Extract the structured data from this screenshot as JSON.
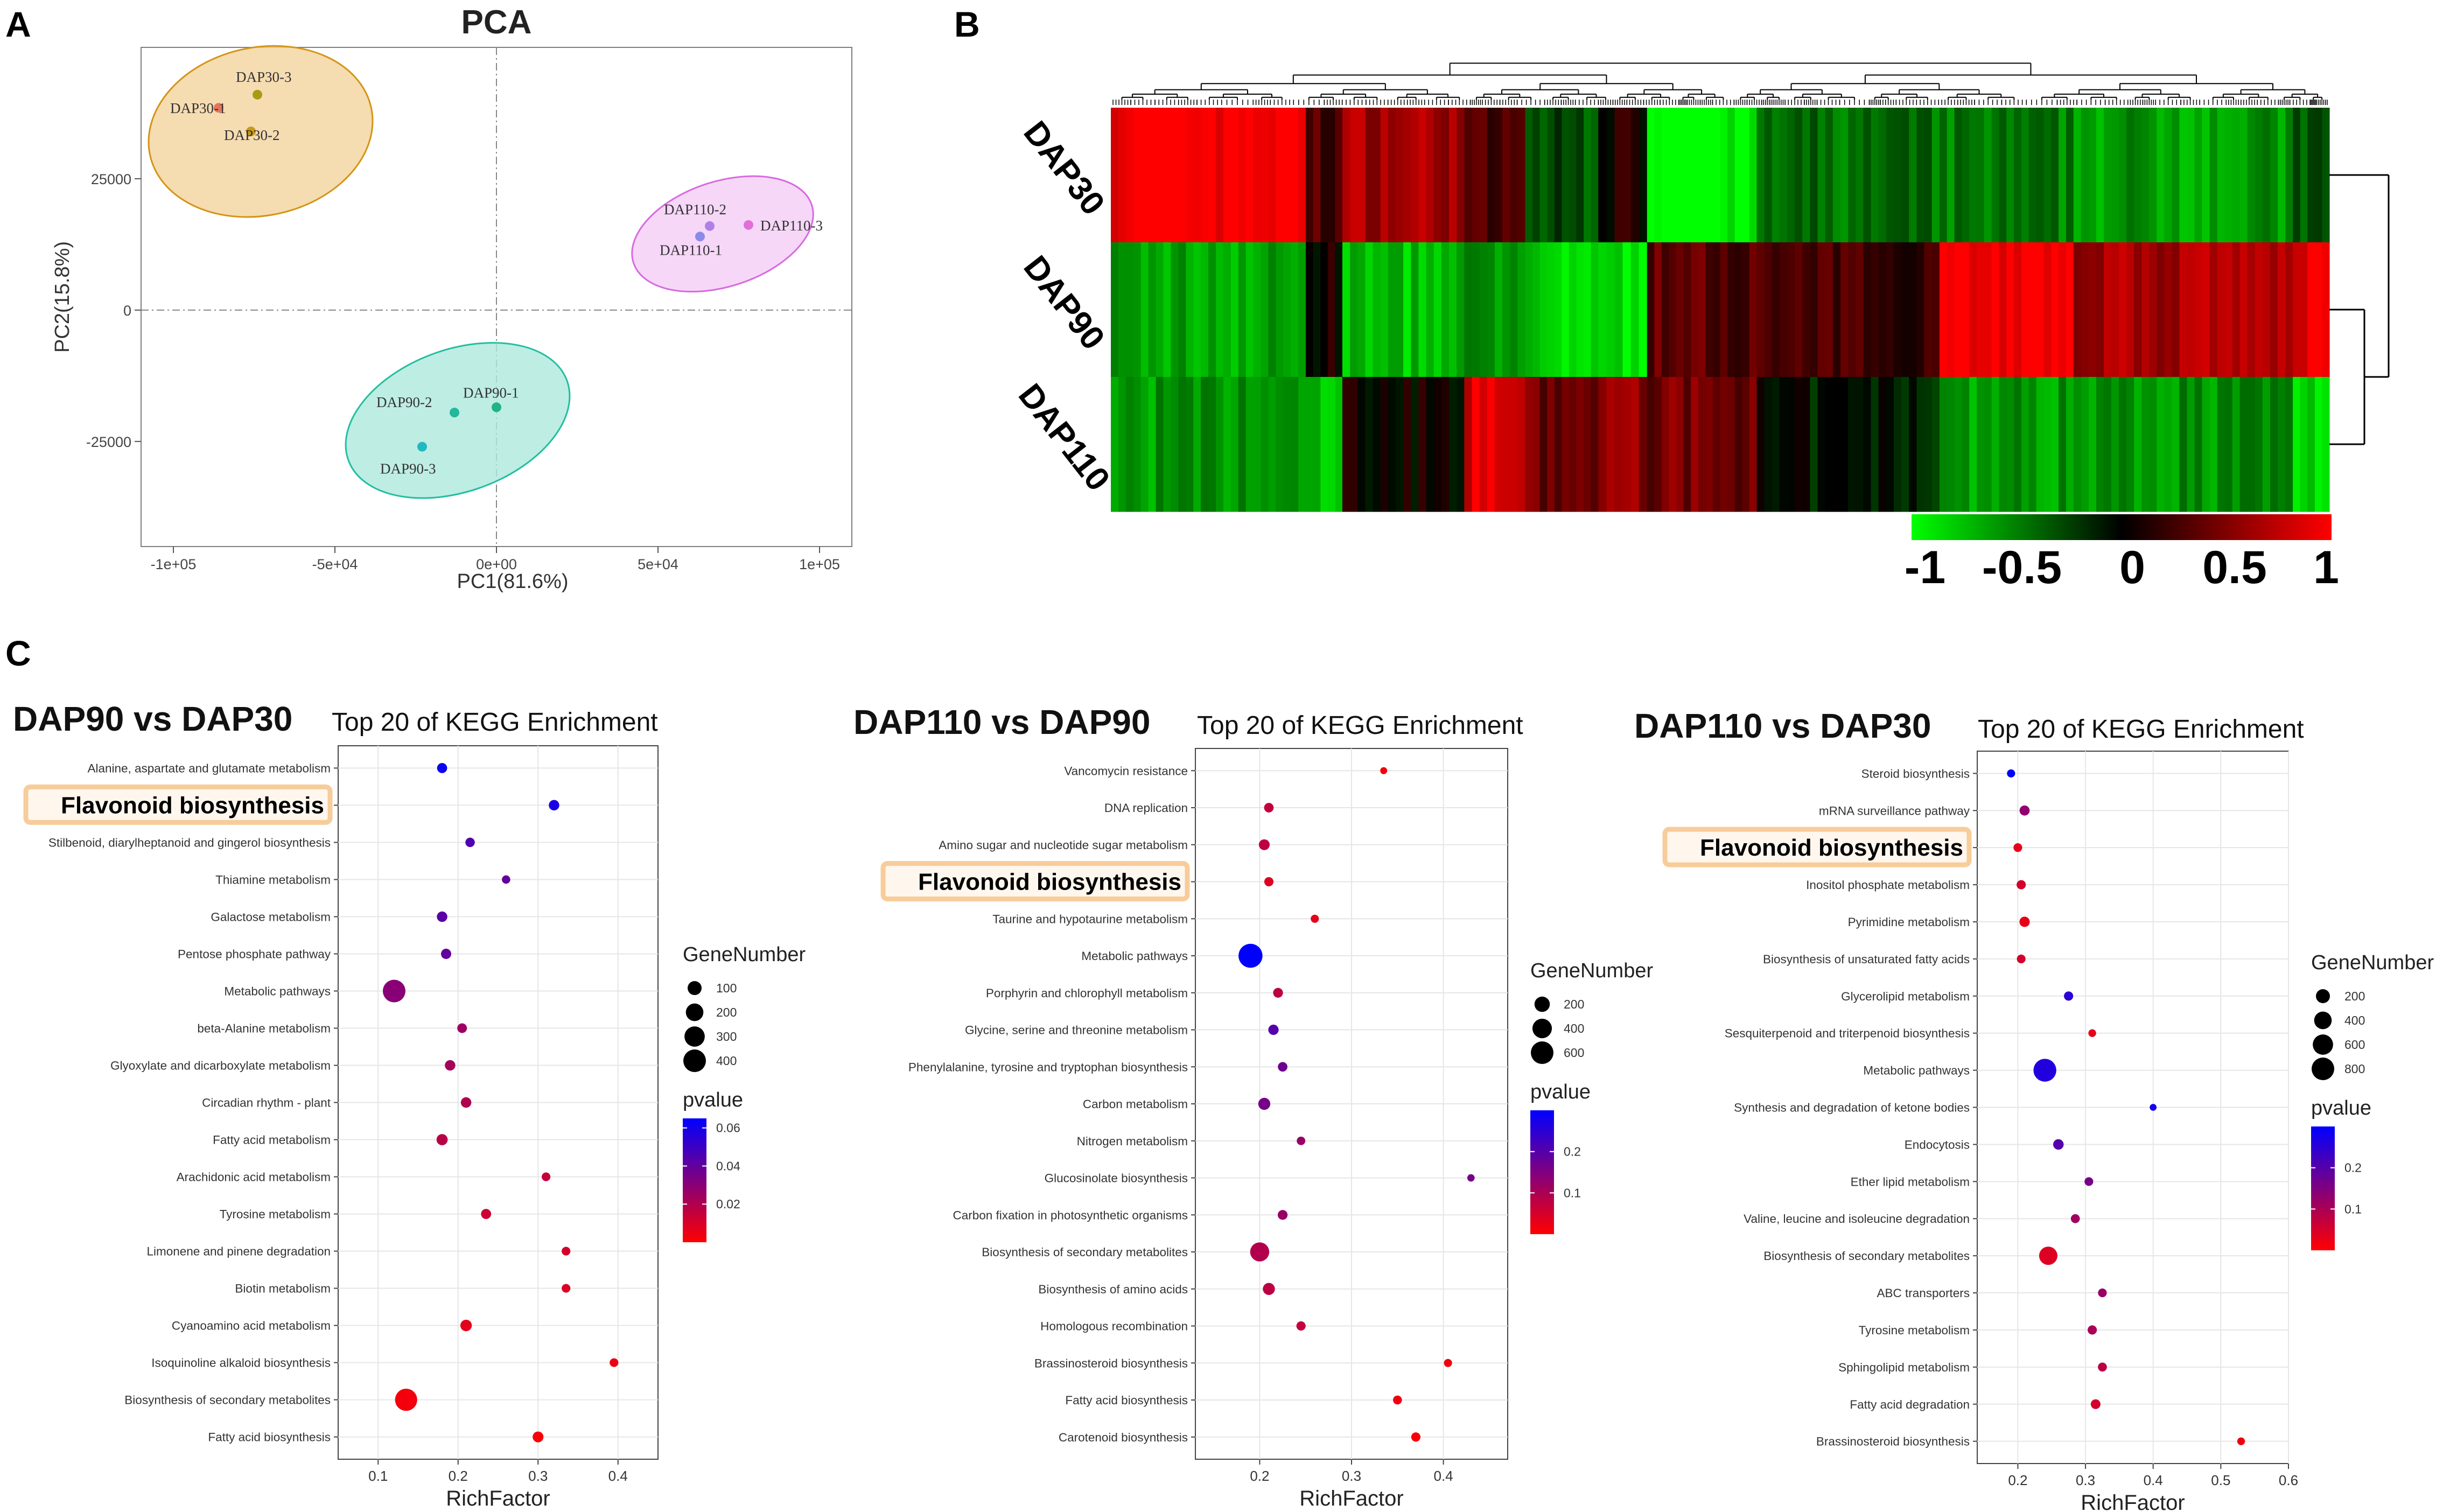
{
  "panels": {
    "a": "A",
    "b": "B",
    "c": "C"
  },
  "colors": {
    "dap30": "#d49414",
    "dap30_fill": "#f3d39e",
    "dap90": "#22bfa0",
    "dap90_fill": "#aee9dd",
    "dap110": "#d86ae0",
    "dap110_fill": "#f4cdf6",
    "heat_low": "#00ff00",
    "heat_mid": "#000000",
    "heat_high": "#ff0000",
    "p_low": "#ff0000",
    "p_high": "#0000ff",
    "highlight": "#f6c48a"
  },
  "chart_data": [
    {
      "id": "pca",
      "type": "scatter",
      "title": "PCA",
      "xlabel": "PC1(81.6%)",
      "ylabel": "PC2(15.8%)",
      "xlim": [
        -110000,
        110000
      ],
      "ylim": [
        -45000,
        50000
      ],
      "x_ticks": [
        -100000,
        -50000,
        0,
        50000,
        100000
      ],
      "x_tick_labels": [
        "-1e+05",
        "-5e+04",
        "0e+00",
        "5e+04",
        "1e+05"
      ],
      "y_ticks": [
        -25000,
        0,
        25000
      ],
      "y_tick_labels": [
        "-25000",
        "0",
        "25000"
      ],
      "groups": [
        {
          "name": "DAP30",
          "color": "#d49414",
          "fill": "#f3d39e",
          "ellipse": {
            "cx": -73000,
            "cy": 34000,
            "rx": 35000,
            "ry": 16000,
            "angle": -12
          },
          "points": [
            {
              "label": "DAP30-1",
              "x": -86000,
              "y": 38500,
              "color": "#e8735a"
            },
            {
              "label": "DAP30-2",
              "x": -76000,
              "y": 34000,
              "color": "#c99a12"
            },
            {
              "label": "DAP30-3",
              "x": -74000,
              "y": 41000,
              "color": "#a89a12"
            }
          ]
        },
        {
          "name": "DAP110",
          "color": "#d86ae0",
          "fill": "#f4cdf6",
          "ellipse": {
            "cx": 70000,
            "cy": 14500,
            "rx": 29000,
            "ry": 10000,
            "angle": -18
          },
          "points": [
            {
              "label": "DAP110-1",
              "x": 63000,
              "y": 14000,
              "color": "#8a8ae8"
            },
            {
              "label": "DAP110-2",
              "x": 66000,
              "y": 16000,
              "color": "#b080e8"
            },
            {
              "label": "DAP110-3",
              "x": 78000,
              "y": 16200,
              "color": "#e070d8"
            }
          ]
        },
        {
          "name": "DAP90",
          "color": "#22bfa0",
          "fill": "#aee9dd",
          "ellipse": {
            "cx": -12000,
            "cy": -21000,
            "rx": 36000,
            "ry": 13500,
            "angle": -20
          },
          "points": [
            {
              "label": "DAP90-1",
              "x": 0,
              "y": -18500,
              "color": "#1fb38a"
            },
            {
              "label": "DAP90-2",
              "x": -13000,
              "y": -19500,
              "color": "#22b89a"
            },
            {
              "label": "DAP90-3",
              "x": -23000,
              "y": -26000,
              "color": "#22b8c0"
            }
          ]
        }
      ]
    },
    {
      "id": "heatmap",
      "type": "heatmap",
      "rows": [
        "DAP30",
        "DAP90",
        "DAP110"
      ],
      "colorbar_ticks": [
        "-1",
        "-0.5",
        "0",
        "0.5",
        "1"
      ],
      "range": [
        -1,
        1
      ],
      "blocks": [
        {
          "w": 0.16,
          "v": [
            1.0,
            -0.65,
            -0.6
          ]
        },
        {
          "w": 0.03,
          "v": [
            0.3,
            0.05,
            -0.75
          ]
        },
        {
          "w": 0.1,
          "v": [
            0.65,
            -0.75,
            0.05
          ]
        },
        {
          "w": 0.05,
          "v": [
            0.25,
            -0.6,
            0.85
          ]
        },
        {
          "w": 0.06,
          "v": [
            -0.3,
            -0.85,
            0.4
          ]
        },
        {
          "w": 0.04,
          "v": [
            0.1,
            -0.9,
            0.55
          ]
        },
        {
          "w": 0.09,
          "v": [
            -1.0,
            0.35,
            0.45
          ]
        },
        {
          "w": 0.15,
          "v": [
            -0.45,
            0.25,
            -0.1
          ]
        },
        {
          "w": 0.11,
          "v": [
            -0.5,
            1.0,
            -0.6
          ]
        },
        {
          "w": 0.18,
          "v": [
            -0.6,
            0.65,
            -0.55
          ]
        },
        {
          "w": 0.03,
          "v": [
            -0.35,
            0.95,
            -0.85
          ]
        }
      ]
    },
    {
      "id": "kegg1",
      "type": "scatter",
      "title_bold": "DAP90 vs DAP30",
      "title": "Top 20 of KEGG Enrichment",
      "xlabel": "RichFactor",
      "xlim": [
        0.05,
        0.45
      ],
      "x_ticks": [
        0.1,
        0.2,
        0.3,
        0.4
      ],
      "x_tick_labels": [
        "0.1",
        "0.2",
        "0.3",
        "0.4"
      ],
      "highlight": "Flavonoid biosynthesis",
      "size_legend": {
        "title": "GeneNumber",
        "values": [
          100,
          200,
          300,
          400
        ]
      },
      "color_legend": {
        "title": "pvalue",
        "ticks": [
          0.06,
          0.04,
          0.02
        ],
        "tick_labels": [
          "0.06",
          "0.04",
          "0.02"
        ],
        "min": 0.0,
        "max": 0.065
      },
      "points": [
        {
          "term": "Alanine, aspartate and glutamate metabolism",
          "x": 0.18,
          "genes": 30,
          "p": 0.062
        },
        {
          "term": "Flavonoid biosynthesis",
          "x": 0.32,
          "genes": 35,
          "p": 0.058
        },
        {
          "term": "Stilbenoid, diarylheptanoid and gingerol biosynthesis",
          "x": 0.215,
          "genes": 22,
          "p": 0.045
        },
        {
          "term": "Thiamine metabolism",
          "x": 0.26,
          "genes": 12,
          "p": 0.04
        },
        {
          "term": "Galactose metabolism",
          "x": 0.18,
          "genes": 35,
          "p": 0.042
        },
        {
          "term": "Pentose phosphate pathway",
          "x": 0.185,
          "genes": 32,
          "p": 0.04
        },
        {
          "term": "Metabolic pathways",
          "x": 0.12,
          "genes": 400,
          "p": 0.03
        },
        {
          "term": "beta-Alanine metabolism",
          "x": 0.205,
          "genes": 25,
          "p": 0.025
        },
        {
          "term": "Glyoxylate and dicarboxylate metabolism",
          "x": 0.19,
          "genes": 35,
          "p": 0.023
        },
        {
          "term": "Circadian rhythm - plant",
          "x": 0.21,
          "genes": 35,
          "p": 0.02
        },
        {
          "term": "Fatty acid metabolism",
          "x": 0.18,
          "genes": 45,
          "p": 0.018
        },
        {
          "term": "Arachidonic acid metabolism",
          "x": 0.31,
          "genes": 15,
          "p": 0.015
        },
        {
          "term": "Tyrosine metabolism",
          "x": 0.235,
          "genes": 30,
          "p": 0.013
        },
        {
          "term": "Limonene and pinene degradation",
          "x": 0.335,
          "genes": 15,
          "p": 0.011
        },
        {
          "term": "Biotin metabolism",
          "x": 0.335,
          "genes": 15,
          "p": 0.009
        },
        {
          "term": "Cyanoamino acid metabolism",
          "x": 0.21,
          "genes": 50,
          "p": 0.007
        },
        {
          "term": "Isoquinoline alkaloid biosynthesis",
          "x": 0.395,
          "genes": 15,
          "p": 0.005
        },
        {
          "term": "Biosynthesis of secondary metabolites",
          "x": 0.135,
          "genes": 380,
          "p": 0.003
        },
        {
          "term": "Fatty acid biosynthesis",
          "x": 0.3,
          "genes": 40,
          "p": 0.002
        }
      ]
    },
    {
      "id": "kegg2",
      "type": "scatter",
      "title_bold": "DAP110 vs DAP90",
      "title": "Top 20 of KEGG Enrichment",
      "xlabel": "RichFactor",
      "xlim": [
        0.13,
        0.47
      ],
      "x_ticks": [
        0.2,
        0.3,
        0.4
      ],
      "x_tick_labels": [
        "0.2",
        "0.3",
        "0.4"
      ],
      "highlight": "Flavonoid biosynthesis",
      "size_legend": {
        "title": "GeneNumber",
        "values": [
          200,
          400,
          600
        ]
      },
      "color_legend": {
        "title": "pvalue",
        "ticks": [
          0.2,
          0.1
        ],
        "tick_labels": [
          "0.2",
          "0.1"
        ],
        "min": 0.0,
        "max": 0.3
      },
      "points": [
        {
          "term": "Vancomycin resistance",
          "x": 0.335,
          "genes": 5,
          "p": 0.015
        },
        {
          "term": "DNA replication",
          "x": 0.21,
          "genes": 35,
          "p": 0.07
        },
        {
          "term": "Amino sugar and nucleotide sugar metabolism",
          "x": 0.205,
          "genes": 60,
          "p": 0.075
        },
        {
          "term": "Flavonoid biosynthesis",
          "x": 0.21,
          "genes": 30,
          "p": 0.04
        },
        {
          "term": "Taurine and hypotaurine metabolism",
          "x": 0.26,
          "genes": 15,
          "p": 0.03
        },
        {
          "term": "Metabolic pathways",
          "x": 0.19,
          "genes": 700,
          "p": 0.3
        },
        {
          "term": "Porphyrin and chlorophyll metabolism",
          "x": 0.22,
          "genes": 40,
          "p": 0.08
        },
        {
          "term": "Glycine, serine and threonine metabolism",
          "x": 0.215,
          "genes": 50,
          "p": 0.2
        },
        {
          "term": "Phenylalanine, tyrosine and tryptophan biosynthesis",
          "x": 0.225,
          "genes": 35,
          "p": 0.17
        },
        {
          "term": "Carbon metabolism",
          "x": 0.205,
          "genes": 90,
          "p": 0.16
        },
        {
          "term": "Nitrogen metabolism",
          "x": 0.245,
          "genes": 20,
          "p": 0.12
        },
        {
          "term": "Glucosinolate biosynthesis",
          "x": 0.43,
          "genes": 8,
          "p": 0.16
        },
        {
          "term": "Carbon fixation in photosynthetic organisms",
          "x": 0.225,
          "genes": 40,
          "p": 0.12
        },
        {
          "term": "Biosynthesis of secondary metabolites",
          "x": 0.2,
          "genes": 380,
          "p": 0.09
        },
        {
          "term": "Biosynthesis of amino acids",
          "x": 0.21,
          "genes": 90,
          "p": 0.08
        },
        {
          "term": "Homologous recombination",
          "x": 0.245,
          "genes": 30,
          "p": 0.07
        },
        {
          "term": "Brassinosteroid biosynthesis",
          "x": 0.405,
          "genes": 15,
          "p": 0.02
        },
        {
          "term": "Fatty acid biosynthesis",
          "x": 0.35,
          "genes": 25,
          "p": 0.02
        },
        {
          "term": "Carotenoid biosynthesis",
          "x": 0.37,
          "genes": 30,
          "p": 0.01
        }
      ]
    },
    {
      "id": "kegg3",
      "type": "scatter",
      "title_bold": "DAP110 vs DAP30",
      "title": "Top 20 of KEGG Enrichment",
      "xlabel": "RichFactor",
      "xlim": [
        0.14,
        0.6
      ],
      "x_ticks": [
        0.2,
        0.3,
        0.4,
        0.5,
        0.6
      ],
      "x_tick_labels": [
        "0.2",
        "0.3",
        "0.4",
        "0.5",
        "0.6"
      ],
      "highlight": "Flavonoid biosynthesis",
      "size_legend": {
        "title": "GeneNumber",
        "values": [
          200,
          400,
          600,
          800
        ]
      },
      "color_legend": {
        "title": "pvalue",
        "ticks": [
          0.2,
          0.1
        ],
        "tick_labels": [
          "0.2",
          "0.1"
        ],
        "min": 0.0,
        "max": 0.3
      },
      "points": [
        {
          "term": "Steroid biosynthesis",
          "x": 0.19,
          "genes": 20,
          "p": 0.3
        },
        {
          "term": "mRNA surveillance pathway",
          "x": 0.21,
          "genes": 60,
          "p": 0.13
        },
        {
          "term": "Flavonoid biosynthesis",
          "x": 0.2,
          "genes": 30,
          "p": 0.03
        },
        {
          "term": "Inositol phosphate metabolism",
          "x": 0.205,
          "genes": 40,
          "p": 0.05
        },
        {
          "term": "Pyrimidine metabolism",
          "x": 0.21,
          "genes": 65,
          "p": 0.03
        },
        {
          "term": "Biosynthesis of unsaturated fatty acids",
          "x": 0.205,
          "genes": 30,
          "p": 0.05
        },
        {
          "term": "Glycerolipid metabolism",
          "x": 0.275,
          "genes": 40,
          "p": 0.25
        },
        {
          "term": "Sesquiterpenoid and triterpenoid biosynthesis",
          "x": 0.31,
          "genes": 15,
          "p": 0.03
        },
        {
          "term": "Metabolic pathways",
          "x": 0.24,
          "genes": 820,
          "p": 0.26
        },
        {
          "term": "Synthesis and degradation of ketone bodies",
          "x": 0.4,
          "genes": 6,
          "p": 0.28
        },
        {
          "term": "Endocytosis",
          "x": 0.26,
          "genes": 70,
          "p": 0.2
        },
        {
          "term": "Ether lipid metabolism",
          "x": 0.305,
          "genes": 30,
          "p": 0.16
        },
        {
          "term": "Valine, leucine and isoleucine degradation",
          "x": 0.285,
          "genes": 35,
          "p": 0.11
        },
        {
          "term": "Biosynthesis of secondary metabolites",
          "x": 0.245,
          "genes": 450,
          "p": 0.04
        },
        {
          "term": "ABC transporters",
          "x": 0.325,
          "genes": 30,
          "p": 0.12
        },
        {
          "term": "Tyrosine metabolism",
          "x": 0.31,
          "genes": 40,
          "p": 0.1
        },
        {
          "term": "Sphingolipid metabolism",
          "x": 0.325,
          "genes": 35,
          "p": 0.08
        },
        {
          "term": "Fatty acid degradation",
          "x": 0.315,
          "genes": 50,
          "p": 0.05
        },
        {
          "term": "Brassinosteroid biosynthesis",
          "x": 0.53,
          "genes": 15,
          "p": 0.02
        }
      ]
    }
  ]
}
